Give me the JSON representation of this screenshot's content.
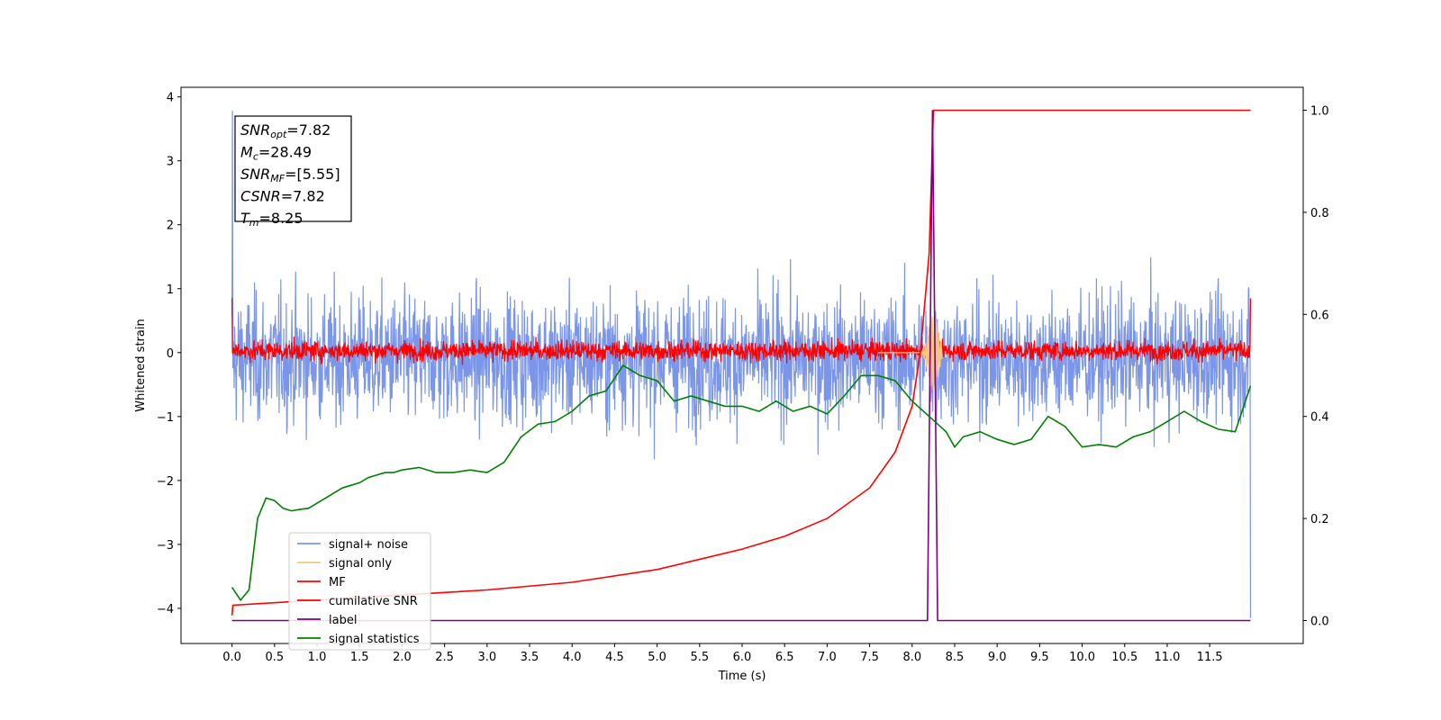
{
  "chart_data": {
    "type": "line",
    "xlabel": "Time (s)",
    "ylabel": "Whitened strain",
    "xlim": [
      -0.6,
      12.6
    ],
    "ylim": [
      -4.55,
      4.15
    ],
    "y2lim": [
      -0.045,
      1.045
    ],
    "x_ticks": [
      "0.0",
      "0.5",
      "1.0",
      "1.5",
      "2.0",
      "2.5",
      "3.0",
      "3.5",
      "4.0",
      "4.5",
      "5.0",
      "5.5",
      "6.0",
      "6.5",
      "7.0",
      "7.5",
      "8.0",
      "8.5",
      "9.0",
      "9.5",
      "10.0",
      "10.5",
      "11.0",
      "11.5"
    ],
    "y_ticks": [
      -4,
      -3,
      -2,
      -1,
      0,
      1,
      2,
      3,
      4
    ],
    "y2_ticks": [
      "0.0",
      "0.2",
      "0.4",
      "0.6",
      "0.8",
      "1.0"
    ],
    "legend_placement": "lower-left",
    "info_box": [
      {
        "base": "SNR",
        "sub": "opt",
        "value": "=7.82"
      },
      {
        "base": "M",
        "sub": "c",
        "value": "=28.49"
      },
      {
        "base": "SNR",
        "sub": "MF",
        "value": "=[5.55]"
      },
      {
        "base": "CSNR",
        "sub": "",
        "value": "=7.82"
      },
      {
        "base": "T",
        "sub": "m",
        "value": "=8.25"
      }
    ],
    "series": [
      {
        "name": "signal+ noise",
        "color": "#7b96e8",
        "axis": "left",
        "kind": "noise",
        "description_values": {
          "mean": -0.1,
          "spread": 2.0,
          "t_start": 0.0,
          "t_end": 11.98,
          "min": -4.15,
          "max": 3.78
        }
      },
      {
        "name": "signal only",
        "color": "#f5c97a",
        "axis": "left",
        "kind": "chirp",
        "description_values": {
          "peak_time": 8.25,
          "peak_amplitude": 0.6
        }
      },
      {
        "name": "MF",
        "color": "#ff0000",
        "axis": "left",
        "kind": "noise",
        "description_values": {
          "mean": 0.0,
          "spread": 0.35,
          "t_start": 0.0,
          "t_end": 11.98
        }
      },
      {
        "name": "cumilative SNR",
        "color": "#ff0000",
        "axis": "right",
        "x": [
          0.0,
          0.01,
          1.0,
          2.0,
          3.0,
          4.0,
          5.0,
          6.0,
          6.5,
          7.0,
          7.5,
          7.8,
          8.0,
          8.1,
          8.2,
          8.25,
          8.3,
          9.0,
          10.0,
          11.0,
          11.98
        ],
        "y": [
          0.01,
          0.03,
          0.04,
          0.05,
          0.06,
          0.075,
          0.1,
          0.14,
          0.165,
          0.2,
          0.26,
          0.33,
          0.42,
          0.53,
          0.72,
          1.0,
          1.0,
          1.0,
          1.0,
          1.0,
          1.0
        ]
      },
      {
        "name": "label",
        "color": "#800080",
        "axis": "right",
        "x": [
          0.0,
          8.18,
          8.24,
          8.3,
          11.98
        ],
        "y": [
          0.0,
          0.0,
          1.0,
          0.0,
          0.0
        ]
      },
      {
        "name": "signal statistics",
        "color": "#008000",
        "axis": "right",
        "x": [
          0.0,
          0.1,
          0.2,
          0.3,
          0.4,
          0.5,
          0.6,
          0.7,
          0.8,
          0.9,
          1.0,
          1.1,
          1.2,
          1.3,
          1.4,
          1.5,
          1.6,
          1.7,
          1.8,
          1.9,
          2.0,
          2.2,
          2.4,
          2.6,
          2.8,
          3.0,
          3.2,
          3.4,
          3.6,
          3.8,
          4.0,
          4.2,
          4.4,
          4.5,
          4.6,
          4.7,
          4.8,
          5.0,
          5.2,
          5.4,
          5.6,
          5.8,
          6.0,
          6.2,
          6.4,
          6.6,
          6.8,
          7.0,
          7.2,
          7.4,
          7.5,
          7.6,
          7.8,
          8.0,
          8.2,
          8.4,
          8.5,
          8.6,
          8.8,
          9.0,
          9.2,
          9.4,
          9.6,
          9.8,
          10.0,
          10.2,
          10.4,
          10.6,
          10.8,
          11.0,
          11.2,
          11.4,
          11.6,
          11.8,
          11.98
        ],
        "y": [
          0.065,
          0.04,
          0.06,
          0.2,
          0.24,
          0.235,
          0.22,
          0.215,
          0.218,
          0.22,
          0.23,
          0.24,
          0.25,
          0.26,
          0.265,
          0.27,
          0.28,
          0.285,
          0.29,
          0.29,
          0.295,
          0.3,
          0.29,
          0.29,
          0.295,
          0.29,
          0.31,
          0.36,
          0.385,
          0.39,
          0.41,
          0.44,
          0.45,
          0.475,
          0.5,
          0.49,
          0.48,
          0.47,
          0.43,
          0.44,
          0.43,
          0.42,
          0.42,
          0.41,
          0.43,
          0.41,
          0.42,
          0.405,
          0.44,
          0.48,
          0.48,
          0.48,
          0.47,
          0.43,
          0.4,
          0.37,
          0.34,
          0.36,
          0.37,
          0.355,
          0.345,
          0.355,
          0.4,
          0.38,
          0.34,
          0.345,
          0.34,
          0.36,
          0.37,
          0.39,
          0.41,
          0.39,
          0.375,
          0.37,
          0.46
        ]
      }
    ]
  }
}
